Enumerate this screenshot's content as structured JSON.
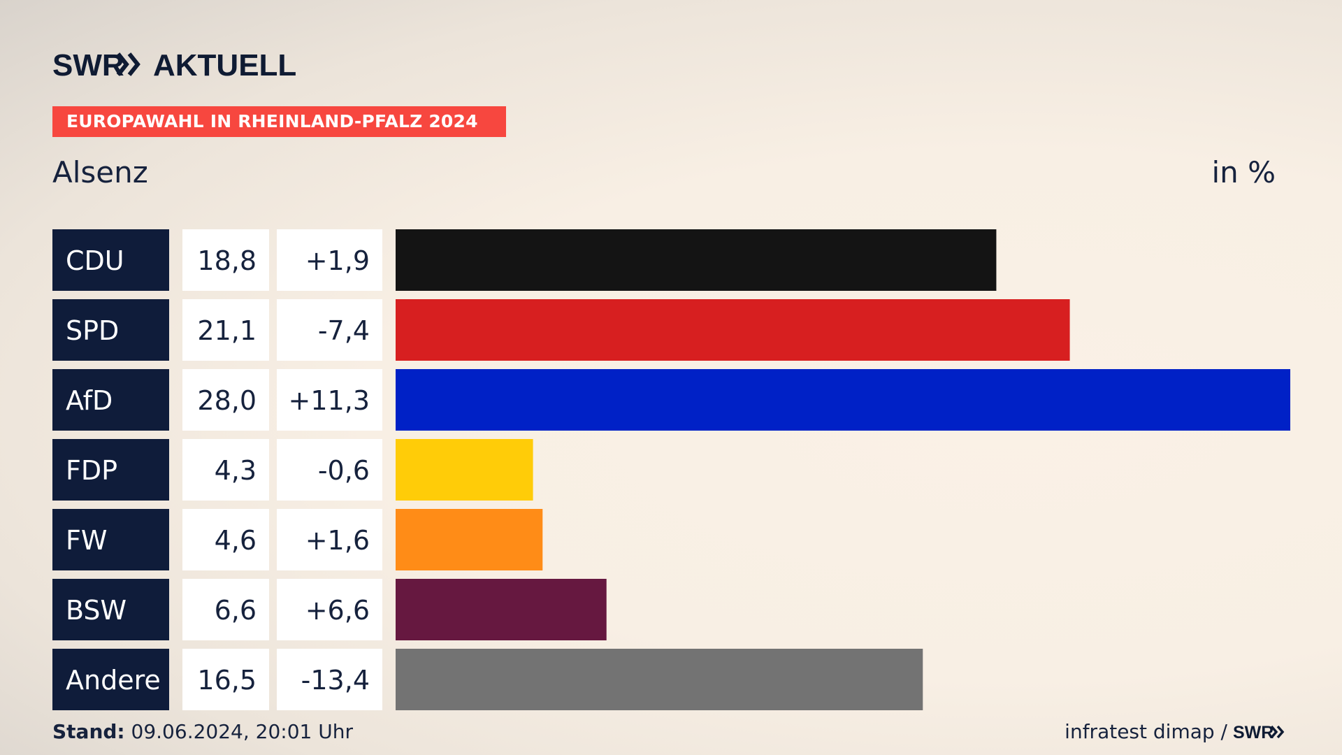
{
  "brand": {
    "logo_text": "SWR",
    "logo_suffix": "AKTUELL"
  },
  "header": {
    "badge": "EUROPAWAHL IN RHEINLAND-PFALZ 2024",
    "place": "Alsenz",
    "unit": "in %"
  },
  "colors": {
    "badge": "#f7473f",
    "label_bg": "#0f1c3a",
    "navy": "#16223d"
  },
  "chart_data": {
    "type": "bar",
    "orientation": "horizontal",
    "categories": [
      "CDU",
      "SPD",
      "AfD",
      "FDP",
      "FW",
      "BSW",
      "Andere"
    ],
    "values": [
      18.8,
      21.1,
      28.0,
      4.3,
      4.6,
      6.6,
      16.5
    ],
    "values_label": [
      "18,8",
      "21,1",
      "28,0",
      "4,3",
      "4,6",
      "6,6",
      "16,5"
    ],
    "changes_label": [
      "+1,9",
      "-7,4",
      "+11,3",
      "-0,6",
      "+1,6",
      "+6,6",
      "-13,4"
    ],
    "bar_colors": [
      "#141414",
      "#d71f20",
      "#0021c6",
      "#ffcc08",
      "#ff8c17",
      "#661840",
      "#737373"
    ],
    "xlim": [
      0,
      28.0
    ],
    "grid": false,
    "legend": "none"
  },
  "footer": {
    "stand_label": "Stand:",
    "stand_value": "09.06.2024, 20:01 Uhr",
    "source": "infratest dimap /",
    "source_logo": "SWR"
  }
}
